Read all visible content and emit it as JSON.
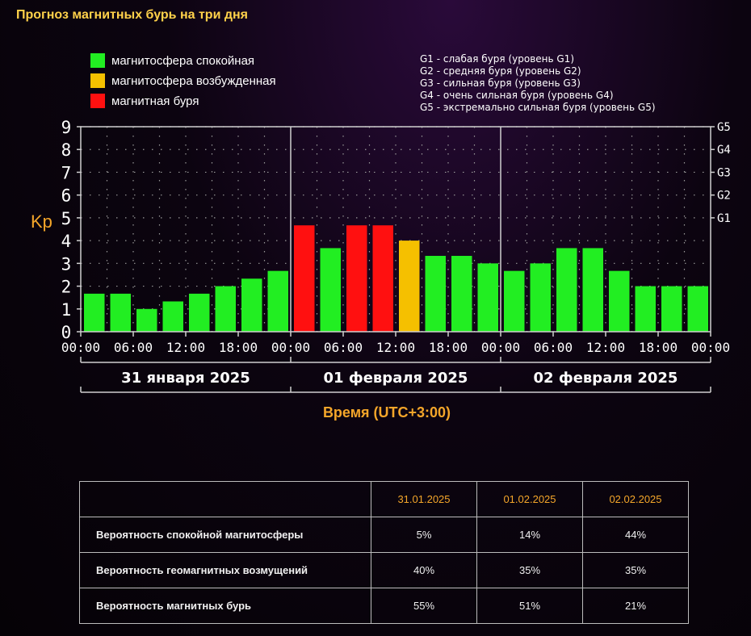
{
  "page_title": "Прогноз магнитных бурь на три дня",
  "legend": [
    {
      "label": "магнитосфера спокойная",
      "color": "#22ee22"
    },
    {
      "label": "магнитосфера возбужденная",
      "color": "#f5c000"
    },
    {
      "label": "магнитная буря",
      "color": "#ff1010"
    }
  ],
  "g_legend": [
    "G1 - слабая буря (уровень G1)",
    "G2 - средняя буря (уровень G2)",
    "G3 - сильная буря (уровень G3)",
    "G4 - очень сильная буря (уровень G4)",
    "G5 - экстремально сильная буря (уровень G5)"
  ],
  "chart_data": {
    "type": "bar",
    "ylabel": "Kp",
    "xlabel": "Время (UTC+3:00)",
    "ylim": [
      0,
      9
    ],
    "y_ticks": [
      "0",
      "1",
      "2",
      "3",
      "4",
      "5",
      "6",
      "7",
      "8",
      "9"
    ],
    "g_ticks": [
      {
        "value": 5,
        "label": "G1"
      },
      {
        "value": 6,
        "label": "G2"
      },
      {
        "value": 7,
        "label": "G3"
      },
      {
        "value": 8,
        "label": "G4"
      },
      {
        "value": 9,
        "label": "G5"
      }
    ],
    "x_tick_labels": [
      "00:00",
      "06:00",
      "12:00",
      "18:00",
      "00:00",
      "06:00",
      "12:00",
      "18:00",
      "00:00",
      "06:00",
      "12:00",
      "18:00",
      "00:00"
    ],
    "days": [
      "31 января 2025",
      "01 февраля 2025",
      "02 февраля 2025"
    ],
    "values": [
      1.67,
      1.67,
      1.0,
      1.33,
      1.67,
      2.0,
      2.33,
      2.67,
      4.67,
      3.67,
      4.67,
      4.67,
      4.0,
      3.33,
      3.33,
      3.0,
      2.67,
      3.0,
      3.67,
      3.67,
      2.67,
      2.0,
      2.0,
      2.0
    ],
    "status": [
      "quiet",
      "quiet",
      "quiet",
      "quiet",
      "quiet",
      "quiet",
      "quiet",
      "quiet",
      "storm",
      "quiet",
      "storm",
      "storm",
      "active",
      "quiet",
      "quiet",
      "quiet",
      "quiet",
      "quiet",
      "quiet",
      "quiet",
      "quiet",
      "quiet",
      "quiet",
      "quiet"
    ],
    "colors": {
      "quiet": "#22ee22",
      "active": "#f5c000",
      "storm": "#ff1010"
    }
  },
  "table": {
    "headers": [
      "",
      "31.01.2025",
      "01.02.2025",
      "02.02.2025"
    ],
    "rows": [
      {
        "label": "Вероятность спокойной магнитосферы",
        "values": [
          "5%",
          "14%",
          "44%"
        ]
      },
      {
        "label": "Вероятность геомагнитных возмущений",
        "values": [
          "40%",
          "35%",
          "35%"
        ]
      },
      {
        "label": "Вероятность магнитных бурь",
        "values": [
          "55%",
          "51%",
          "21%"
        ]
      }
    ]
  }
}
